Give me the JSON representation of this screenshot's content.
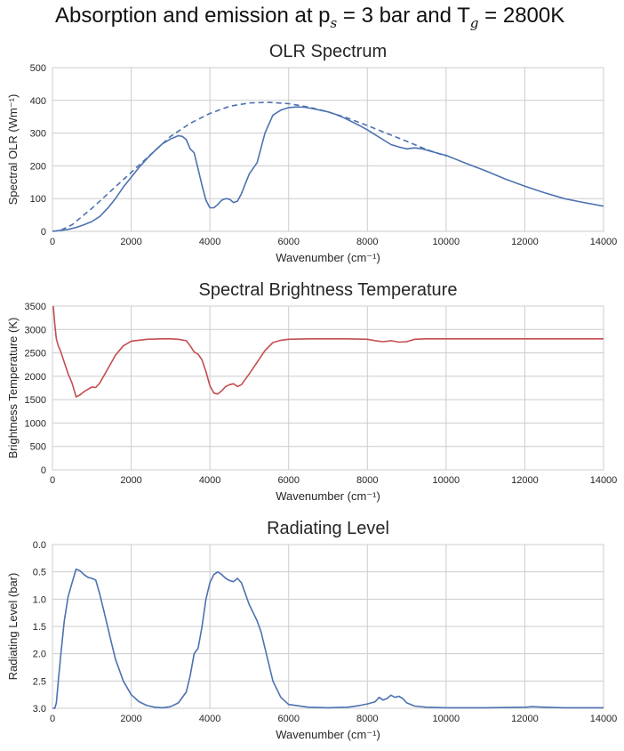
{
  "figure": {
    "title_prefix": "Absorption and emission at p",
    "title_sub1": "s",
    "title_mid": " = 3 bar and T",
    "title_sub2": "g",
    "title_suffix": " = 2800K"
  },
  "colors": {
    "blue": "#4c72b0",
    "red": "#c44e52",
    "grid": "#cccccc"
  },
  "chart_data": [
    {
      "type": "line",
      "title": "OLR Spectrum",
      "xlabel": "Wavenumber (cm⁻¹)",
      "ylabel": "Spectral OLR (Wm⁻¹)",
      "xlim": [
        0,
        14000
      ],
      "ylim": [
        0,
        500
      ],
      "xticks": [
        0,
        2000,
        4000,
        6000,
        8000,
        10000,
        12000,
        14000
      ],
      "yticks": [
        0,
        100,
        200,
        300,
        400,
        500
      ],
      "ytick_labels": [
        "0",
        "100",
        "200",
        "300",
        "400",
        "500"
      ],
      "grid": true,
      "series": [
        {
          "style": "solid",
          "color": "#4c72b0",
          "x": [
            0,
            200,
            400,
            600,
            800,
            1000,
            1200,
            1400,
            1600,
            1800,
            2000,
            2200,
            2400,
            2600,
            2800,
            3000,
            3200,
            3300,
            3400,
            3500,
            3600,
            3700,
            3800,
            3900,
            4000,
            4100,
            4200,
            4300,
            4400,
            4500,
            4600,
            4700,
            4800,
            4900,
            5000,
            5200,
            5400,
            5600,
            5800,
            6000,
            6200,
            6400,
            6600,
            6800,
            7000,
            7200,
            7400,
            7600,
            7800,
            8000,
            8200,
            8400,
            8600,
            8800,
            9000,
            9200,
            9400,
            9600,
            9800,
            10000,
            10500,
            11000,
            11500,
            12000,
            12500,
            13000,
            13500,
            14000
          ],
          "y": [
            0,
            3,
            6,
            12,
            20,
            30,
            45,
            70,
            100,
            135,
            165,
            195,
            222,
            246,
            268,
            282,
            292,
            290,
            280,
            252,
            240,
            190,
            140,
            95,
            72,
            72,
            82,
            95,
            100,
            98,
            88,
            92,
            115,
            145,
            175,
            210,
            300,
            355,
            370,
            378,
            380,
            379,
            375,
            370,
            365,
            357,
            347,
            335,
            323,
            310,
            295,
            280,
            265,
            258,
            252,
            255,
            252,
            245,
            238,
            232,
            208,
            185,
            160,
            138,
            118,
            100,
            88,
            77
          ]
        },
        {
          "style": "dashed",
          "color": "#4c72b0",
          "x": [
            0,
            200,
            500,
            1000,
            1500,
            2000,
            2500,
            3000,
            3500,
            4000,
            4500,
            5000,
            5500,
            6000,
            6500,
            7000,
            7500,
            8000,
            8500,
            9000,
            9500,
            10000
          ],
          "y": [
            0,
            3,
            20,
            70,
            125,
            180,
            235,
            290,
            330,
            360,
            382,
            392,
            394,
            390,
            380,
            365,
            346,
            323,
            299,
            275,
            250,
            230
          ]
        }
      ]
    },
    {
      "type": "line",
      "title": "Spectral Brightness Temperature",
      "xlabel": "Wavenumber (cm⁻¹)",
      "ylabel": "Brightness Temperature (K)",
      "xlim": [
        0,
        14000
      ],
      "ylim": [
        0,
        3500
      ],
      "xticks": [
        0,
        2000,
        4000,
        6000,
        8000,
        10000,
        12000,
        14000
      ],
      "yticks": [
        0,
        500,
        1000,
        1500,
        2000,
        2500,
        3000,
        3500
      ],
      "ytick_labels": [
        "0",
        "500",
        "1000",
        "1500",
        "2000",
        "2500",
        "3000",
        "3500"
      ],
      "grid": true,
      "series": [
        {
          "style": "solid",
          "color": "#c44e52",
          "x": [
            20,
            60,
            100,
            150,
            200,
            300,
            400,
            500,
            600,
            700,
            800,
            900,
            1000,
            1100,
            1200,
            1400,
            1600,
            1800,
            2000,
            2400,
            2800,
            3000,
            3200,
            3400,
            3500,
            3600,
            3700,
            3800,
            3900,
            4000,
            4100,
            4200,
            4300,
            4400,
            4500,
            4600,
            4700,
            4800,
            5000,
            5200,
            5400,
            5600,
            5800,
            6000,
            6500,
            7000,
            7500,
            8000,
            8200,
            8400,
            8600,
            8800,
            9000,
            9200,
            9500,
            10000,
            11000,
            12000,
            13000,
            14000
          ],
          "y": [
            3500,
            3100,
            2800,
            2650,
            2550,
            2300,
            2050,
            1850,
            1560,
            1600,
            1670,
            1720,
            1770,
            1760,
            1850,
            2150,
            2450,
            2650,
            2750,
            2790,
            2800,
            2800,
            2790,
            2760,
            2650,
            2520,
            2470,
            2350,
            2100,
            1800,
            1640,
            1620,
            1690,
            1780,
            1820,
            1840,
            1780,
            1820,
            2050,
            2300,
            2550,
            2720,
            2770,
            2790,
            2800,
            2800,
            2800,
            2790,
            2760,
            2740,
            2760,
            2730,
            2740,
            2790,
            2800,
            2800,
            2800,
            2800,
            2800,
            2800
          ]
        }
      ]
    },
    {
      "type": "line",
      "title": "Radiating Level",
      "xlabel": "Wavenumber (cm⁻¹)",
      "ylabel": "Radiating Level (bar)",
      "xlim": [
        0,
        14000
      ],
      "ylim": [
        3.0,
        0.0
      ],
      "xticks": [
        0,
        2000,
        4000,
        6000,
        8000,
        10000,
        12000,
        14000
      ],
      "yticks": [
        0.0,
        0.5,
        1.0,
        1.5,
        2.0,
        2.5,
        3.0
      ],
      "ytick_labels": [
        "0.0",
        "0.5",
        "1.0",
        "1.5",
        "2.0",
        "2.5",
        "3.0"
      ],
      "grid": true,
      "series": [
        {
          "style": "solid",
          "color": "#4c72b0",
          "x": [
            0,
            60,
            100,
            150,
            200,
            300,
            400,
            500,
            600,
            700,
            800,
            900,
            1000,
            1100,
            1200,
            1300,
            1400,
            1500,
            1600,
            1800,
            2000,
            2200,
            2400,
            2600,
            2800,
            3000,
            3200,
            3400,
            3500,
            3600,
            3700,
            3800,
            3900,
            4000,
            4100,
            4200,
            4300,
            4400,
            4500,
            4600,
            4700,
            4800,
            4900,
            5000,
            5100,
            5200,
            5300,
            5400,
            5500,
            5600,
            5800,
            6000,
            6500,
            7000,
            7500,
            7800,
            8000,
            8200,
            8300,
            8400,
            8500,
            8600,
            8700,
            8800,
            8900,
            9000,
            9200,
            9500,
            10000,
            11000,
            12000,
            12200,
            12500,
            13000,
            14000
          ],
          "y": [
            3.0,
            3.0,
            2.9,
            2.5,
            2.1,
            1.4,
            0.95,
            0.7,
            0.45,
            0.48,
            0.55,
            0.6,
            0.62,
            0.65,
            0.9,
            1.2,
            1.5,
            1.8,
            2.1,
            2.5,
            2.75,
            2.88,
            2.95,
            2.98,
            2.99,
            2.97,
            2.9,
            2.7,
            2.4,
            2.0,
            1.9,
            1.5,
            1.0,
            0.7,
            0.55,
            0.5,
            0.55,
            0.62,
            0.66,
            0.68,
            0.62,
            0.7,
            0.9,
            1.1,
            1.25,
            1.4,
            1.6,
            1.9,
            2.2,
            2.5,
            2.8,
            2.93,
            2.98,
            2.99,
            2.98,
            2.95,
            2.92,
            2.88,
            2.8,
            2.85,
            2.82,
            2.76,
            2.8,
            2.78,
            2.82,
            2.9,
            2.96,
            2.98,
            2.99,
            2.99,
            2.98,
            2.97,
            2.98,
            2.99,
            2.99
          ]
        }
      ]
    }
  ]
}
